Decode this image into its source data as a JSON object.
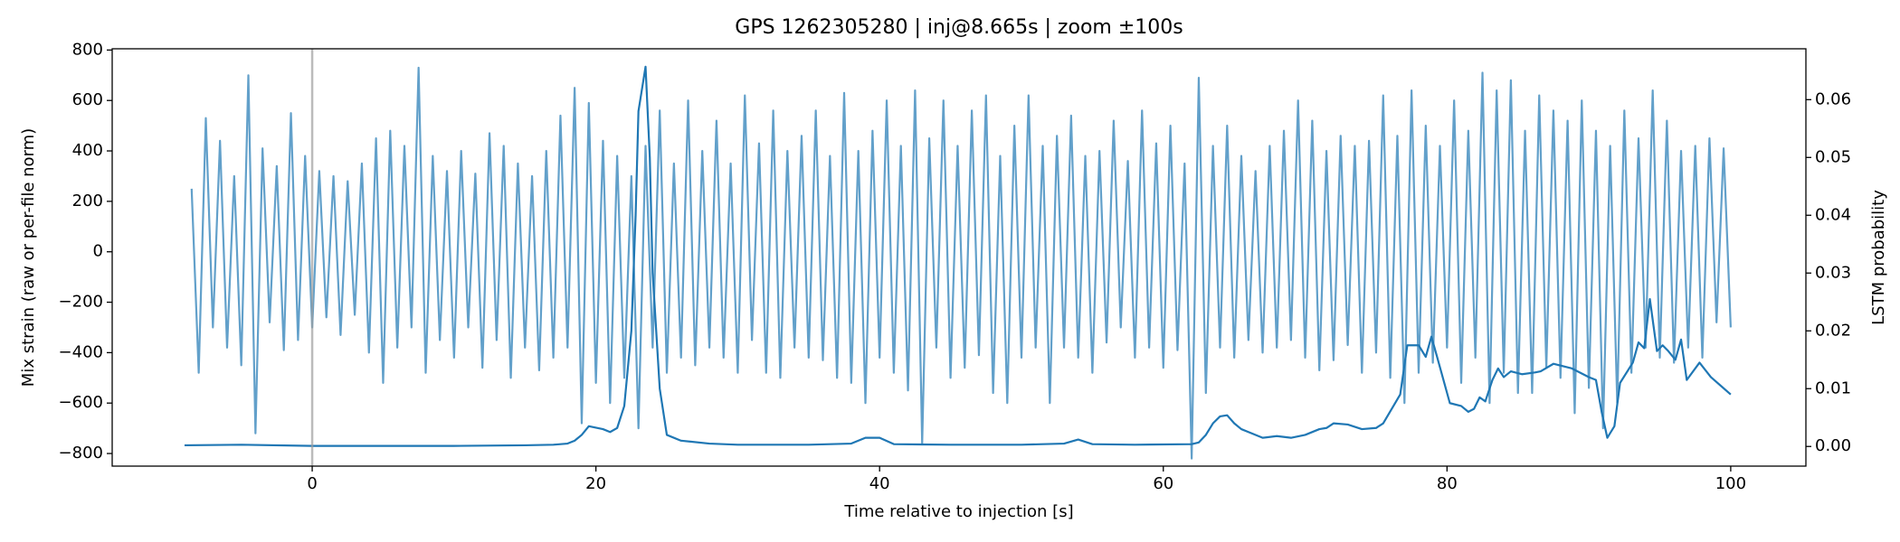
{
  "chart_data": {
    "type": "line",
    "title": "GPS 1262305280 | inj@8.665s | zoom ±100s",
    "xlabel": "Time relative to injection [s]",
    "ylabel": "Mix strain (raw or per-file norm)",
    "y2label": "LSTM probability",
    "xlim": [
      -14.1,
      105.3
    ],
    "xticks": [
      0,
      20,
      40,
      60,
      80,
      100
    ],
    "ylim": [
      -850,
      805
    ],
    "yticks": [
      {
        "value": -800,
        "label": "−800"
      },
      {
        "value": -600,
        "label": "−600"
      },
      {
        "value": -400,
        "label": "−400"
      },
      {
        "value": -200,
        "label": "−200"
      },
      0,
      200,
      400,
      600,
      800
    ],
    "y2lim": [
      -0.0034,
      0.0688
    ],
    "y2ticks": [
      {
        "value": 0,
        "label": "0.00"
      },
      {
        "value": 0.01,
        "label": "0.01"
      },
      {
        "value": 0.02,
        "label": "0.02"
      },
      {
        "value": 0.03,
        "label": "0.03"
      },
      {
        "value": 0.04,
        "label": "0.04"
      },
      {
        "value": 0.05,
        "label": "0.05"
      },
      {
        "value": 0.06,
        "label": "0.06"
      }
    ],
    "grid": false,
    "vline": {
      "x": 0,
      "color": "#9e9e9e"
    },
    "series": [
      {
        "color": "#1f77b4",
        "opacity": 0.7,
        "x": [
          -8.5,
          -8,
          -7.5,
          -7,
          -6.5,
          -6,
          -5.5,
          -5,
          -4.5,
          -4,
          -3.5,
          -3,
          -2.5,
          -2,
          -1.5,
          -1,
          -0.5,
          0,
          0.5,
          1,
          1.5,
          2,
          2.5,
          3,
          3.5,
          4,
          4.5,
          5,
          5.5,
          6,
          6.5,
          7,
          7.5,
          8,
          8.5,
          9,
          9.5,
          10,
          10.5,
          11,
          11.5,
          12,
          12.5,
          13,
          13.5,
          14,
          14.5,
          15,
          15.5,
          16,
          16.5,
          17,
          17.5,
          18,
          18.5,
          19,
          19.5,
          20,
          20.5,
          21,
          21.5,
          22,
          22.5,
          23,
          23.5,
          24,
          24.5,
          25,
          25.5,
          26,
          26.5,
          27,
          27.5,
          28,
          28.5,
          29,
          29.5,
          30,
          30.5,
          31,
          31.5,
          32,
          32.5,
          33,
          33.5,
          34,
          34.5,
          35,
          35.5,
          36,
          36.5,
          37,
          37.5,
          38,
          38.5,
          39,
          39.5,
          40,
          40.5,
          41,
          41.5,
          42,
          42.5,
          43,
          43.5,
          44,
          44.5,
          45,
          45.5,
          46,
          46.5,
          47,
          47.5,
          48,
          48.5,
          49,
          49.5,
          50,
          50.5,
          51,
          51.5,
          52,
          52.5,
          53,
          53.5,
          54,
          54.5,
          55,
          55.5,
          56,
          56.5,
          57,
          57.5,
          58,
          58.5,
          59,
          59.5,
          60,
          60.5,
          61,
          61.5,
          62,
          62.5,
          63,
          63.5,
          64,
          64.5,
          65,
          65.5,
          66,
          66.5,
          67,
          67.5,
          68,
          68.5,
          69,
          69.5,
          70,
          70.5,
          71,
          71.5,
          72,
          72.5,
          73,
          73.5,
          74,
          74.5,
          75,
          75.5,
          76,
          76.5,
          77,
          77.5,
          78,
          78.5,
          79,
          79.5,
          80,
          80.5,
          81,
          81.5,
          82,
          82.5,
          83,
          83.5,
          84,
          84.5,
          85,
          85.5,
          86,
          86.5,
          87,
          87.5,
          88,
          88.5,
          89,
          89.5,
          90,
          90.5,
          91,
          91.5,
          92,
          92.5,
          93,
          93.5,
          94,
          94.5,
          95,
          95.5,
          96,
          96.5,
          97,
          97.5,
          98,
          98.5,
          99,
          99.5,
          100
        ],
        "values": [
          250,
          -480,
          530,
          -300,
          440,
          -380,
          300,
          -450,
          700,
          -720,
          410,
          -280,
          340,
          -390,
          550,
          -350,
          380,
          -300,
          320,
          -260,
          300,
          -330,
          280,
          -250,
          350,
          -400,
          450,
          -520,
          480,
          -380,
          420,
          -300,
          730,
          -480,
          380,
          -350,
          320,
          -420,
          400,
          -300,
          310,
          -460,
          470,
          -350,
          420,
          -500,
          350,
          -380,
          300,
          -470,
          400,
          -420,
          540,
          -380,
          650,
          -680,
          590,
          -520,
          440,
          -600,
          380,
          -500,
          300,
          -700,
          420,
          -380,
          560,
          -480,
          350,
          -420,
          600,
          -450,
          400,
          -380,
          520,
          -420,
          350,
          -480,
          620,
          -350,
          430,
          -480,
          560,
          -500,
          400,
          -380,
          460,
          -420,
          560,
          -430,
          380,
          -500,
          630,
          -520,
          400,
          -600,
          480,
          -420,
          600,
          -480,
          420,
          -550,
          640,
          -760,
          450,
          -380,
          600,
          -500,
          420,
          -460,
          560,
          -410,
          620,
          -560,
          380,
          -600,
          500,
          -420,
          620,
          -380,
          420,
          -600,
          460,
          -380,
          540,
          -420,
          380,
          -480,
          400,
          -360,
          520,
          -300,
          360,
          -420,
          560,
          -380,
          430,
          -460,
          500,
          -390,
          350,
          -820,
          690,
          -560,
          420,
          -380,
          500,
          -420,
          380,
          -350,
          320,
          -400,
          420,
          -380,
          480,
          -350,
          600,
          -420,
          520,
          -470,
          400,
          -430,
          460,
          -370,
          420,
          -480,
          440,
          -400,
          620,
          -500,
          460,
          -600,
          640,
          -480,
          500,
          -440,
          420,
          -380,
          600,
          -520,
          480,
          -420,
          710,
          -600,
          640,
          -480,
          680,
          -560,
          480,
          -560,
          620,
          -460,
          560,
          -500,
          520,
          -640,
          600,
          -540,
          480,
          -700,
          420,
          -600,
          560,
          -480,
          450,
          -380,
          640,
          -420,
          520,
          -440,
          400,
          -380,
          420,
          -420,
          450,
          -280,
          410,
          -300
        ]
      },
      {
        "color": "#1f77b4",
        "opacity": 1,
        "axis": "y2",
        "x": [
          -9,
          -5,
          0,
          5,
          10,
          15,
          17,
          18,
          18.5,
          19,
          19.5,
          20.5,
          21,
          21.5,
          22,
          22.5,
          22.8,
          23,
          23.5,
          23.8,
          24,
          24.5,
          25,
          26,
          28,
          30,
          35,
          38,
          39,
          40,
          41,
          45,
          50,
          53,
          54,
          55,
          58,
          62,
          62.5,
          63,
          63.5,
          64,
          64.5,
          65,
          65.5,
          66,
          67,
          68,
          69,
          70,
          71,
          71.5,
          72,
          73,
          74,
          75,
          75.5,
          76.7,
          77.2,
          78,
          78.5,
          78.9,
          79.3,
          80.2,
          81,
          81.5,
          81.9,
          82.3,
          82.7,
          83.2,
          83.6,
          84,
          84.5,
          85.3,
          86.2,
          86.6,
          87.5,
          88.8,
          90,
          90.5,
          90.9,
          91.3,
          91.8,
          92.2,
          93.1,
          93.5,
          93.9,
          94.3,
          94.8,
          95.2,
          95.6,
          96.1,
          96.5,
          96.9,
          97.8,
          98.6,
          100
        ],
        "values": [
          0.0002,
          0.0003,
          0.0001,
          0.0001,
          0.0001,
          0.0002,
          0.0003,
          0.0005,
          0.001,
          0.002,
          0.0035,
          0.003,
          0.0025,
          0.0032,
          0.007,
          0.02,
          0.04,
          0.058,
          0.0657,
          0.05,
          0.03,
          0.01,
          0.002,
          0.001,
          0.0005,
          0.0003,
          0.0003,
          0.0005,
          0.0015,
          0.0015,
          0.0004,
          0.0003,
          0.0003,
          0.0005,
          0.0012,
          0.0004,
          0.0003,
          0.0004,
          0.0007,
          0.002,
          0.004,
          0.0052,
          0.0054,
          0.004,
          0.003,
          0.0025,
          0.0015,
          0.0018,
          0.0015,
          0.002,
          0.003,
          0.0032,
          0.004,
          0.0038,
          0.003,
          0.0032,
          0.004,
          0.009,
          0.0175,
          0.0175,
          0.0155,
          0.019,
          0.0155,
          0.0075,
          0.007,
          0.006,
          0.0065,
          0.0085,
          0.0078,
          0.0115,
          0.0135,
          0.012,
          0.013,
          0.0125,
          0.0128,
          0.013,
          0.0143,
          0.0135,
          0.012,
          0.0115,
          0.006,
          0.0015,
          0.0035,
          0.011,
          0.0145,
          0.018,
          0.017,
          0.0255,
          0.0165,
          0.0175,
          0.0165,
          0.015,
          0.0185,
          0.0115,
          0.0145,
          0.012,
          0.009
        ]
      }
    ]
  }
}
